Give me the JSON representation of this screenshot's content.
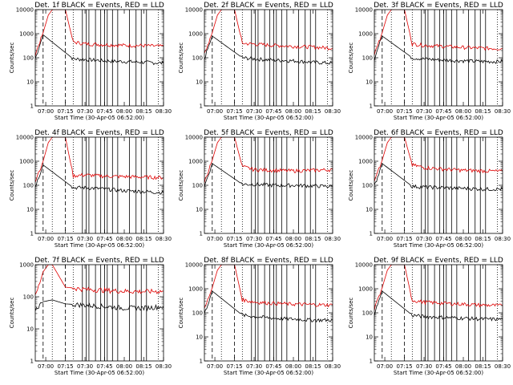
{
  "chart_data": [
    {
      "type": "line",
      "title": "Det. 1f BLACK = Events, RED = LLD",
      "xlabel": "Start Time (30-Apr-05 06:52:00)",
      "ylabel": "Counts/sec",
      "x_ticks": [
        "07:00",
        "07:15",
        "07:30",
        "07:45",
        "08:00",
        "08:15",
        "08:30"
      ],
      "x_range": [
        "06:52",
        "08:30"
      ],
      "y_ticks": [
        "1",
        "10",
        "100",
        "1000",
        "10000"
      ],
      "yscale": "log",
      "ylim": [
        1,
        10000
      ],
      "series": [
        {
          "color": "#000000",
          "x": [
            "06:52",
            "06:58",
            "07:21",
            "07:30",
            "07:45",
            "08:00",
            "08:15",
            "08:30"
          ],
          "values": [
            90,
            900,
            90,
            85,
            75,
            70,
            65,
            60
          ]
        },
        {
          "color": "#e00000",
          "x": [
            "06:52",
            "06:58",
            "07:02",
            "07:05",
            "07:15",
            "07:21",
            "07:30",
            "07:45",
            "08:00",
            "08:15",
            "08:30"
          ],
          "values": [
            140,
            1100,
            6000,
            10000,
            10000,
            450,
            380,
            350,
            330,
            320,
            300
          ]
        }
      ]
    },
    {
      "type": "line",
      "title": "Det. 2f BLACK = Events, RED = LLD",
      "xlabel": "Start Time (30-Apr-05 06:52:00)",
      "ylabel": "Counts/sec",
      "x_ticks": [
        "07:00",
        "07:15",
        "07:30",
        "07:45",
        "08:00",
        "08:15",
        "08:30"
      ],
      "x_range": [
        "06:52",
        "08:30"
      ],
      "y_ticks": [
        "1",
        "10",
        "100",
        "1000",
        "10000"
      ],
      "yscale": "log",
      "ylim": [
        1,
        10000
      ],
      "series": [
        {
          "color": "#000000",
          "x": [
            "06:52",
            "06:58",
            "07:21",
            "07:30",
            "07:45",
            "08:00",
            "08:15",
            "08:30"
          ],
          "values": [
            90,
            800,
            100,
            90,
            80,
            75,
            65,
            60
          ]
        },
        {
          "color": "#e00000",
          "x": [
            "06:52",
            "06:58",
            "07:02",
            "07:05",
            "07:15",
            "07:21",
            "07:30",
            "07:45",
            "08:00",
            "08:15",
            "08:30"
          ],
          "values": [
            140,
            1100,
            6000,
            10000,
            10000,
            400,
            370,
            330,
            300,
            280,
            250
          ]
        }
      ]
    },
    {
      "type": "line",
      "title": "Det. 3f BLACK = Events, RED = LLD",
      "xlabel": "Start Time (30-Apr-05 06:52:00)",
      "ylabel": "Counts/sec",
      "x_ticks": [
        "07:00",
        "07:15",
        "07:30",
        "07:45",
        "08:00",
        "08:15",
        "08:30"
      ],
      "x_range": [
        "06:52",
        "08:30"
      ],
      "y_ticks": [
        "1",
        "10",
        "100",
        "1000",
        "10000"
      ],
      "yscale": "log",
      "ylim": [
        1,
        10000
      ],
      "series": [
        {
          "color": "#000000",
          "x": [
            "06:52",
            "06:58",
            "07:21",
            "07:30",
            "07:45",
            "08:00",
            "08:15",
            "08:30"
          ],
          "values": [
            90,
            800,
            100,
            90,
            80,
            75,
            70,
            70
          ]
        },
        {
          "color": "#e00000",
          "x": [
            "06:52",
            "06:58",
            "07:02",
            "07:05",
            "07:15",
            "07:21",
            "07:30",
            "07:45",
            "08:00",
            "08:15",
            "08:30"
          ],
          "values": [
            140,
            1100,
            6000,
            10000,
            10000,
            380,
            330,
            300,
            270,
            250,
            240
          ]
        }
      ]
    },
    {
      "type": "line",
      "title": "Det. 4f BLACK = Events, RED = LLD",
      "xlabel": "Start Time (30-Apr-05 06:52:00)",
      "ylabel": "Counts/sec",
      "x_ticks": [
        "07:00",
        "07:15",
        "07:30",
        "07:45",
        "08:00",
        "08:15",
        "08:30"
      ],
      "x_range": [
        "06:52",
        "08:30"
      ],
      "y_ticks": [
        "1",
        "10",
        "100",
        "1000",
        "10000"
      ],
      "yscale": "log",
      "ylim": [
        1,
        10000
      ],
      "series": [
        {
          "color": "#000000",
          "x": [
            "06:52",
            "06:58",
            "07:21",
            "07:30",
            "07:45",
            "08:00",
            "08:15",
            "08:30"
          ],
          "values": [
            90,
            700,
            80,
            80,
            70,
            60,
            55,
            50
          ]
        },
        {
          "color": "#e00000",
          "x": [
            "06:52",
            "06:58",
            "07:02",
            "07:05",
            "07:15",
            "07:21",
            "07:30",
            "07:45",
            "08:00",
            "08:15",
            "08:30"
          ],
          "values": [
            140,
            1000,
            6000,
            10000,
            10000,
            250,
            270,
            240,
            230,
            220,
            210
          ]
        }
      ]
    },
    {
      "type": "line",
      "title": "Det. 5f BLACK = Events, RED = LLD",
      "xlabel": "Start Time (30-Apr-05 06:52:00)",
      "ylabel": "Counts/sec",
      "x_ticks": [
        "07:00",
        "07:15",
        "07:30",
        "07:45",
        "08:00",
        "08:15",
        "08:30"
      ],
      "x_range": [
        "06:52",
        "08:30"
      ],
      "y_ticks": [
        "1",
        "10",
        "100",
        "1000",
        "10000"
      ],
      "yscale": "log",
      "ylim": [
        1,
        10000
      ],
      "series": [
        {
          "color": "#000000",
          "x": [
            "06:52",
            "06:58",
            "07:21",
            "07:30",
            "07:45",
            "08:00",
            "08:15",
            "08:30"
          ],
          "values": [
            90,
            800,
            110,
            110,
            100,
            100,
            95,
            90
          ]
        },
        {
          "color": "#e00000",
          "x": [
            "06:52",
            "06:58",
            "07:02",
            "07:05",
            "07:15",
            "07:21",
            "07:30",
            "07:45",
            "08:00",
            "08:15",
            "08:30"
          ],
          "values": [
            140,
            1100,
            6000,
            10000,
            10000,
            600,
            450,
            420,
            400,
            420,
            450
          ]
        }
      ]
    },
    {
      "type": "line",
      "title": "Det. 6f BLACK = Events, RED = LLD",
      "xlabel": "Start Time (30-Apr-05 06:52:00)",
      "ylabel": "Counts/sec",
      "x_ticks": [
        "07:00",
        "07:15",
        "07:30",
        "07:45",
        "08:00",
        "08:15",
        "08:30"
      ],
      "x_range": [
        "06:52",
        "08:30"
      ],
      "y_ticks": [
        "1",
        "10",
        "100",
        "1000",
        "10000"
      ],
      "yscale": "log",
      "ylim": [
        1,
        10000
      ],
      "series": [
        {
          "color": "#000000",
          "x": [
            "06:52",
            "06:58",
            "07:21",
            "07:30",
            "07:45",
            "08:00",
            "08:15",
            "08:30"
          ],
          "values": [
            90,
            800,
            90,
            85,
            80,
            75,
            70,
            70
          ]
        },
        {
          "color": "#e00000",
          "x": [
            "06:52",
            "06:58",
            "07:02",
            "07:05",
            "07:15",
            "07:21",
            "07:30",
            "07:45",
            "08:00",
            "08:15",
            "08:30"
          ],
          "values": [
            140,
            1100,
            6000,
            10000,
            10000,
            700,
            550,
            470,
            420,
            400,
            380
          ]
        }
      ]
    },
    {
      "type": "line",
      "title": "Det. 7f BLACK = Events, RED = LLD",
      "xlabel": "Start Time (30-Apr-05 06:52:00)",
      "ylabel": "Counts/sec",
      "x_ticks": [
        "07:00",
        "07:15",
        "07:30",
        "07:45",
        "08:00",
        "08:15",
        "08:30"
      ],
      "x_range": [
        "06:52",
        "08:30"
      ],
      "y_ticks": [
        "1",
        "10",
        "100",
        "1000"
      ],
      "yscale": "log",
      "ylim": [
        1,
        1000
      ],
      "series": [
        {
          "color": "#000000",
          "x": [
            "06:52",
            "06:58",
            "07:05",
            "07:15",
            "07:30",
            "07:45",
            "08:00",
            "08:15",
            "08:30"
          ],
          "values": [
            40,
            70,
            80,
            60,
            55,
            50,
            45,
            45,
            50
          ]
        },
        {
          "color": "#e00000",
          "x": [
            "06:52",
            "06:58",
            "07:02",
            "07:05",
            "07:15",
            "07:30",
            "07:45",
            "08:00",
            "08:15",
            "08:30"
          ],
          "values": [
            100,
            600,
            1000,
            1000,
            200,
            170,
            160,
            150,
            145,
            150
          ]
        }
      ]
    },
    {
      "type": "line",
      "title": "Det. 8f BLACK = Events, RED = LLD",
      "xlabel": "Start Time (30-Apr-05 06:52:00)",
      "ylabel": "Counts/sec",
      "x_ticks": [
        "07:00",
        "07:15",
        "07:30",
        "07:45",
        "08:00",
        "08:15",
        "08:30"
      ],
      "x_range": [
        "06:52",
        "08:30"
      ],
      "y_ticks": [
        "1",
        "10",
        "100",
        "1000",
        "10000"
      ],
      "yscale": "log",
      "ylim": [
        1,
        10000
      ],
      "series": [
        {
          "color": "#000000",
          "x": [
            "06:52",
            "06:58",
            "07:21",
            "07:30",
            "07:45",
            "08:00",
            "08:15",
            "08:30"
          ],
          "values": [
            90,
            800,
            80,
            70,
            60,
            55,
            50,
            50
          ]
        },
        {
          "color": "#e00000",
          "x": [
            "06:52",
            "06:58",
            "07:02",
            "07:05",
            "07:15",
            "07:21",
            "07:30",
            "07:45",
            "08:00",
            "08:15",
            "08:30"
          ],
          "values": [
            140,
            1100,
            6000,
            10000,
            10000,
            350,
            280,
            250,
            230,
            220,
            210
          ]
        }
      ]
    },
    {
      "type": "line",
      "title": "Det. 9f BLACK = Events, RED = LLD",
      "xlabel": "Start Time (30-Apr-05 06:52:00)",
      "ylabel": "Counts/sec",
      "x_ticks": [
        "07:00",
        "07:15",
        "07:30",
        "07:45",
        "08:00",
        "08:15",
        "08:30"
      ],
      "x_range": [
        "06:52",
        "08:30"
      ],
      "y_ticks": [
        "1",
        "10",
        "100",
        "1000",
        "10000"
      ],
      "yscale": "log",
      "ylim": [
        1,
        10000
      ],
      "series": [
        {
          "color": "#000000",
          "x": [
            "06:52",
            "06:58",
            "07:21",
            "07:30",
            "07:45",
            "08:00",
            "08:15",
            "08:30"
          ],
          "values": [
            90,
            800,
            80,
            70,
            65,
            60,
            55,
            55
          ]
        },
        {
          "color": "#e00000",
          "x": [
            "06:52",
            "06:58",
            "07:02",
            "07:05",
            "07:15",
            "07:21",
            "07:30",
            "07:45",
            "08:00",
            "08:15",
            "08:30"
          ],
          "values": [
            140,
            1100,
            6000,
            10000,
            10000,
            330,
            280,
            250,
            230,
            210,
            200
          ]
        }
      ]
    }
  ],
  "markers": {
    "dotted_lines": [
      "07:05",
      "07:21",
      "08:26"
    ],
    "dashed_lines": [
      "06:58",
      "07:15"
    ],
    "solid_lines": [
      "07:28",
      "07:31",
      "07:33",
      "07:38",
      "07:42",
      "07:45",
      "07:47",
      "07:51",
      "07:55",
      "08:04",
      "08:09",
      "08:13",
      "08:17"
    ]
  }
}
